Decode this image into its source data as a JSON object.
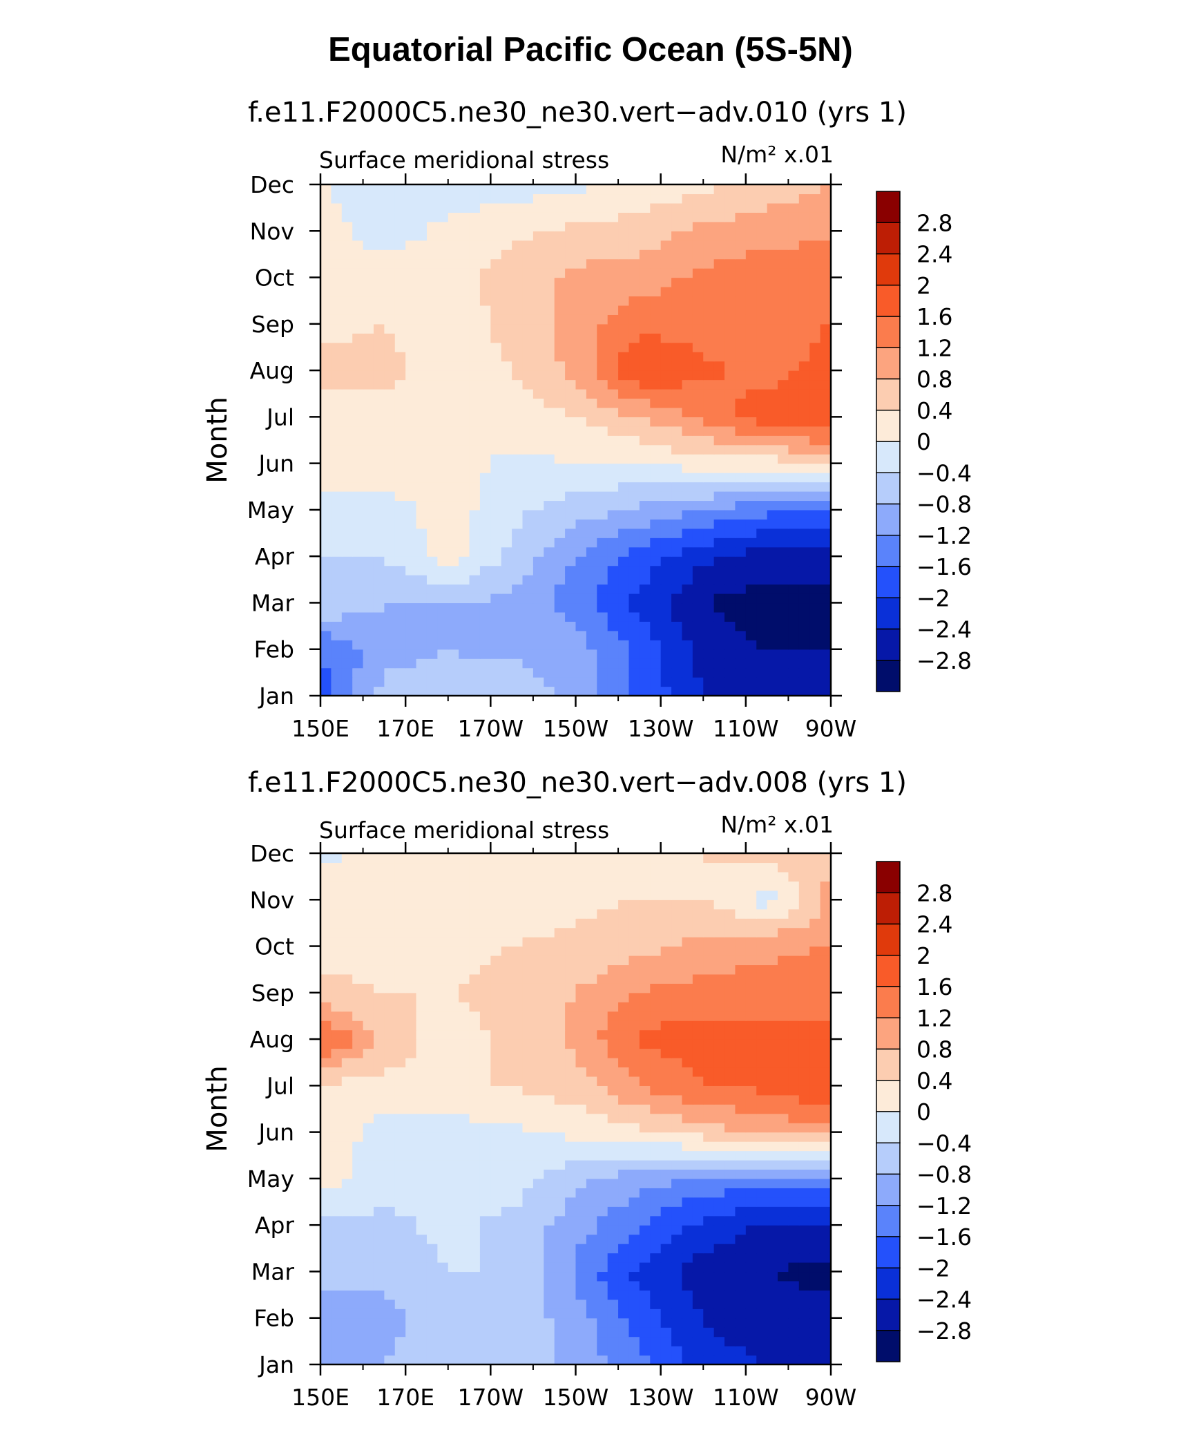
{
  "title": "Equatorial Pacific Ocean (5S-5N)",
  "chart_data": [
    {
      "type": "heatmap",
      "title": "f.e11.F2000C5.ne30_ne30.vert−adv.010 (yrs 1)",
      "subtitle": "Surface meridional stress",
      "units": "N/m² x.01",
      "ylabel": "Month",
      "x_ticks": [
        "150E",
        "170E",
        "170W",
        "150W",
        "130W",
        "110W",
        "90W"
      ],
      "y_ticks": [
        "Jan",
        "Feb",
        "Mar",
        "Apr",
        "May",
        "Jun",
        "Jul",
        "Aug",
        "Sep",
        "Oct",
        "Nov",
        "Dec"
      ],
      "colorbar_labels": [
        "2.8",
        "2.4",
        "2",
        "1.6",
        "1.2",
        "0.8",
        "0.4",
        "0",
        "−0.4",
        "−0.8",
        "−1.2",
        "−1.6",
        "−2",
        "−2.4",
        "−2.8"
      ],
      "field": {
        "lon": [
          150,
          165,
          180,
          195,
          210,
          225,
          240,
          255,
          270
        ],
        "month": [
          "Jan",
          "Feb",
          "Mar",
          "Apr",
          "May",
          "Jun",
          "Jul",
          "Aug",
          "Sep",
          "Oct",
          "Nov",
          "Dec"
        ],
        "values": [
          [
            -1.8,
            -0.6,
            -0.6,
            -0.5,
            -0.9,
            -1.7,
            -2.4,
            -2.6,
            -2.6
          ],
          [
            -1.6,
            -1.0,
            -0.8,
            -0.9,
            -1.0,
            -1.7,
            -2.6,
            -2.8,
            -2.8
          ],
          [
            -0.4,
            -0.8,
            -0.8,
            -0.9,
            -1.4,
            -2.1,
            -2.8,
            -3.0,
            -3.0
          ],
          [
            -0.4,
            -0.4,
            0.2,
            -0.5,
            -1.2,
            -1.8,
            -2.3,
            -2.6,
            -2.6
          ],
          [
            -0.2,
            -0.2,
            0.2,
            -0.3,
            -0.6,
            -0.9,
            -1.2,
            -1.5,
            -1.5
          ],
          [
            0.2,
            0.3,
            0.2,
            -0.1,
            0.0,
            0.0,
            0.2,
            0.2,
            0.5
          ],
          [
            0.2,
            0.3,
            0.2,
            0.2,
            0.4,
            0.8,
            1.3,
            1.9,
            2.0
          ],
          [
            0.5,
            0.5,
            0.2,
            0.4,
            0.9,
            2.0,
            1.7,
            1.4,
            1.8
          ],
          [
            0.3,
            0.4,
            0.2,
            0.5,
            1.0,
            1.5,
            1.4,
            1.4,
            1.6
          ],
          [
            0.3,
            0.2,
            0.2,
            0.6,
            0.9,
            1.0,
            1.3,
            1.5,
            1.6
          ],
          [
            0.2,
            -0.2,
            0.1,
            0.3,
            0.5,
            0.6,
            0.9,
            1.0,
            1.1
          ],
          [
            0.0,
            -0.2,
            -0.2,
            -0.2,
            -0.1,
            0.1,
            0.3,
            0.6,
            0.8
          ]
        ]
      }
    },
    {
      "type": "heatmap",
      "title": "f.e11.F2000C5.ne30_ne30.vert−adv.008 (yrs 1)",
      "subtitle": "Surface meridional stress",
      "units": "N/m² x.01",
      "ylabel": "Month",
      "x_ticks": [
        "150E",
        "170E",
        "170W",
        "150W",
        "130W",
        "110W",
        "90W"
      ],
      "y_ticks": [
        "Jan",
        "Feb",
        "Mar",
        "Apr",
        "May",
        "Jun",
        "Jul",
        "Aug",
        "Sep",
        "Oct",
        "Nov",
        "Dec"
      ],
      "colorbar_labels": [
        "2.8",
        "2.4",
        "2",
        "1.6",
        "1.2",
        "0.8",
        "0.4",
        "0",
        "−0.4",
        "−0.8",
        "−1.2",
        "−1.6",
        "−2",
        "−2.4",
        "−2.8"
      ],
      "field": {
        "lon": [
          150,
          165,
          180,
          195,
          210,
          225,
          240,
          255,
          270
        ],
        "month": [
          "Jan",
          "Feb",
          "Mar",
          "Apr",
          "May",
          "Jun",
          "Jul",
          "Aug",
          "Sep",
          "Oct",
          "Nov",
          "Dec"
        ],
        "values": [
          [
            -1.1,
            -0.8,
            -0.6,
            -0.6,
            -0.9,
            -1.5,
            -2.2,
            -2.4,
            -2.4
          ],
          [
            -1.2,
            -0.9,
            -0.6,
            -0.5,
            -1.0,
            -1.8,
            -2.4,
            -2.7,
            -2.7
          ],
          [
            -0.6,
            -0.7,
            -0.4,
            -0.4,
            -1.3,
            -2.1,
            -2.6,
            -2.8,
            -2.9
          ],
          [
            -0.6,
            -0.5,
            -0.3,
            -0.5,
            -1.0,
            -1.6,
            -2.1,
            -2.5,
            -2.5
          ],
          [
            0.2,
            -0.2,
            -0.4,
            -0.2,
            -0.7,
            -1.0,
            -1.3,
            -1.4,
            -1.4
          ],
          [
            0.3,
            -0.2,
            -0.2,
            -0.1,
            0.1,
            0.3,
            0.6,
            0.9,
            1.0
          ],
          [
            0.3,
            0.3,
            0.4,
            0.4,
            0.6,
            1.2,
            1.6,
            1.7,
            2.0
          ],
          [
            1.8,
            0.6,
            0.2,
            0.5,
            0.9,
            1.7,
            1.8,
            1.7,
            1.7
          ],
          [
            0.5,
            0.4,
            0.4,
            0.5,
            0.8,
            1.2,
            1.4,
            1.4,
            1.5
          ],
          [
            0.3,
            0.3,
            0.3,
            0.4,
            0.5,
            0.7,
            0.9,
            1.1,
            1.2
          ],
          [
            0.3,
            0.3,
            0.3,
            0.2,
            0.3,
            0.4,
            0.4,
            -0.2,
            0.9
          ],
          [
            -0.1,
            0.1,
            0.2,
            0.1,
            0.2,
            0.3,
            0.4,
            0.6,
            0.8
          ]
        ]
      }
    }
  ],
  "colorbar_colors": [
    "#8a0000",
    "#bd1e05",
    "#e03a0c",
    "#f95b29",
    "#fb7c4d",
    "#fca47f",
    "#fccdb1",
    "#fdebd9",
    "#d7e8fb",
    "#b6cdfb",
    "#8daafb",
    "#5a83fb",
    "#2451fb",
    "#0a30d8",
    "#0618a8",
    "#000d6b"
  ]
}
